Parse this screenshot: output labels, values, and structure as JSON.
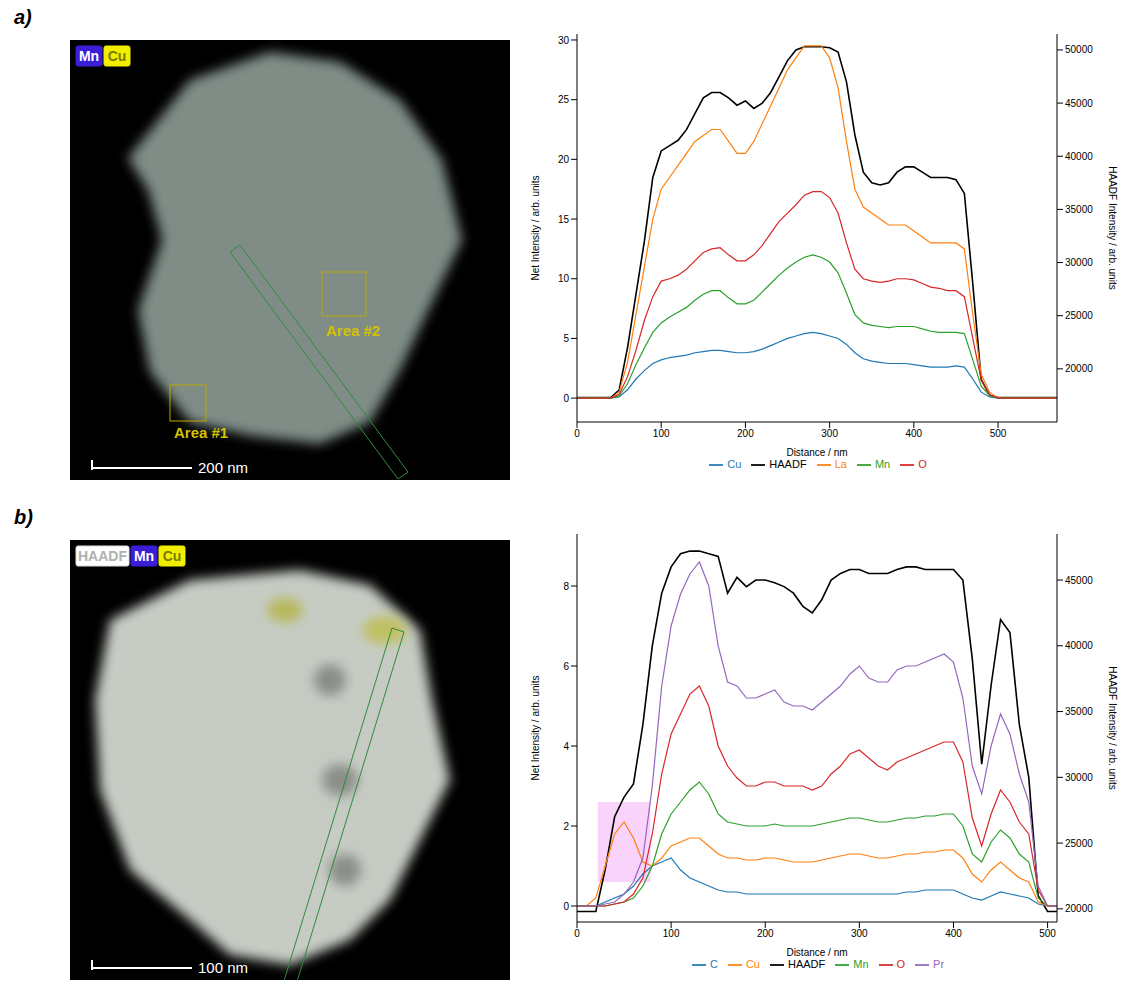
{
  "panels": [
    {
      "label": "a)",
      "image": {
        "badges": [
          "Mn",
          "Cu"
        ],
        "areas": [
          "Area #2",
          "Area #1"
        ],
        "scale_bar": "200 nm"
      }
    },
    {
      "label": "b)",
      "image": {
        "badges": [
          "HAADF",
          "Mn",
          "Cu"
        ],
        "areas": [],
        "scale_bar": "100 nm"
      }
    }
  ],
  "chart_data": [
    {
      "type": "line",
      "x_label": "Distance / nm",
      "y_label": "Net Intensity / arb. units",
      "y2_label": "HAADF Intensity / arb. units",
      "legend": "bottom",
      "xlim": [
        0,
        570
      ],
      "xticks": [
        0,
        100,
        200,
        300,
        400,
        500
      ],
      "ylim": [
        -2,
        30.5
      ],
      "yticks": [
        0,
        5,
        10,
        15,
        20,
        25,
        30
      ],
      "y2lim": [
        15000,
        51500
      ],
      "y2ticks": [
        20000,
        25000,
        30000,
        35000,
        40000,
        45000,
        50000
      ],
      "x": [
        0,
        10,
        20,
        30,
        40,
        50,
        60,
        70,
        80,
        90,
        100,
        110,
        120,
        130,
        140,
        150,
        160,
        170,
        180,
        190,
        200,
        210,
        220,
        230,
        240,
        250,
        260,
        270,
        280,
        290,
        300,
        310,
        320,
        330,
        340,
        350,
        360,
        370,
        380,
        390,
        400,
        410,
        420,
        430,
        440,
        450,
        460,
        470,
        480,
        490,
        500,
        510,
        520,
        530,
        540,
        550,
        560,
        570
      ],
      "series": [
        {
          "name": "HAADF",
          "color": "#000000",
          "axis": "y2",
          "values": [
            17300,
            17300,
            17300,
            17300,
            17300,
            18000,
            22000,
            27000,
            32000,
            38000,
            40500,
            41000,
            41500,
            42500,
            44000,
            45500,
            46000,
            46000,
            45500,
            44800,
            45200,
            44500,
            45000,
            46000,
            47500,
            49000,
            50000,
            50300,
            50300,
            50300,
            50200,
            49800,
            47000,
            42000,
            38500,
            37500,
            37300,
            37500,
            38500,
            39000,
            39000,
            38500,
            38000,
            38000,
            38000,
            37800,
            36500,
            28000,
            19000,
            17500,
            17300,
            17300,
            17300,
            17300,
            17300,
            17300,
            17300,
            17300
          ]
        },
        {
          "name": "Cu",
          "color": "#1f77b4",
          "values": [
            0,
            0,
            0,
            0,
            0,
            0.1,
            0.7,
            1.6,
            2.3,
            2.9,
            3.2,
            3.4,
            3.5,
            3.6,
            3.8,
            3.9,
            4,
            4,
            3.9,
            3.8,
            3.8,
            3.9,
            4.1,
            4.4,
            4.7,
            5,
            5.2,
            5.4,
            5.5,
            5.4,
            5.2,
            5,
            4.5,
            3.8,
            3.3,
            3.1,
            3,
            2.9,
            2.9,
            2.9,
            2.8,
            2.7,
            2.6,
            2.6,
            2.6,
            2.7,
            2.6,
            1.6,
            0.5,
            0.1,
            0,
            0,
            0,
            0,
            0,
            0,
            0,
            0
          ]
        },
        {
          "name": "La",
          "color": "#ff7f0e",
          "values": [
            0,
            0,
            0,
            0,
            0,
            0.5,
            3,
            7,
            11,
            15,
            17.5,
            18.5,
            19.5,
            20.5,
            21.5,
            22,
            22.5,
            22.5,
            21.5,
            20.5,
            20.5,
            21.5,
            23,
            24.5,
            26,
            27.5,
            28.5,
            29.5,
            29.5,
            29.5,
            28.5,
            26,
            21.5,
            17.5,
            16,
            15.5,
            15,
            14.5,
            14.5,
            14.5,
            14,
            13.5,
            13,
            13,
            13,
            13,
            12.5,
            7,
            2,
            0.5,
            0,
            0,
            0,
            0,
            0,
            0,
            0,
            0
          ]
        },
        {
          "name": "Mn",
          "color": "#2ca02c",
          "values": [
            0,
            0,
            0,
            0,
            0,
            0.2,
            1.2,
            2.8,
            4.2,
            5.5,
            6.3,
            6.8,
            7.2,
            7.6,
            8.2,
            8.7,
            9,
            9,
            8.4,
            7.9,
            7.9,
            8.2,
            8.9,
            9.6,
            10.3,
            10.9,
            11.4,
            11.8,
            12,
            11.8,
            11.4,
            10.5,
            8.8,
            7,
            6.3,
            6.1,
            6,
            5.9,
            6,
            6,
            6,
            5.8,
            5.6,
            5.5,
            5.5,
            5.5,
            5.4,
            3.2,
            1,
            0.2,
            0,
            0,
            0,
            0,
            0,
            0,
            0,
            0
          ]
        },
        {
          "name": "O",
          "color": "#d62728",
          "values": [
            0,
            0,
            0,
            0,
            0,
            0.3,
            1.8,
            4,
            6.5,
            8.5,
            9.8,
            10,
            10.3,
            10.8,
            11.5,
            12.2,
            12.5,
            12.6,
            12,
            11.5,
            11.5,
            12,
            12.8,
            13.8,
            14.8,
            15.5,
            16.2,
            17,
            17.3,
            17.3,
            16.8,
            15.5,
            13,
            10.8,
            10,
            9.8,
            9.7,
            9.8,
            10,
            10,
            9.9,
            9.6,
            9.3,
            9.2,
            9,
            9,
            8.5,
            5,
            1.5,
            0.3,
            0,
            0,
            0,
            0,
            0,
            0,
            0,
            0
          ]
        }
      ]
    },
    {
      "type": "line",
      "x_label": "Distance / nm",
      "y_label": "Net Intensity / arb. units",
      "y2_label": "HAADF Intensity / arb. units",
      "legend": "bottom",
      "xlim": [
        0,
        510
      ],
      "xticks": [
        0,
        100,
        200,
        300,
        400,
        500
      ],
      "ylim": [
        -0.4,
        9.3
      ],
      "yticks": [
        0,
        2,
        4,
        6,
        8
      ],
      "y2lim": [
        19000,
        48500
      ],
      "y2ticks": [
        20000,
        25000,
        30000,
        35000,
        40000,
        45000
      ],
      "highlight": {
        "x": [
          22,
          78
        ],
        "y": [
          0.6,
          2.6
        ],
        "color": "#ee82ee"
      },
      "x": [
        0,
        10,
        20,
        30,
        40,
        50,
        60,
        70,
        80,
        90,
        100,
        110,
        120,
        130,
        140,
        150,
        160,
        170,
        180,
        190,
        200,
        210,
        220,
        230,
        240,
        250,
        260,
        270,
        280,
        290,
        300,
        310,
        320,
        330,
        340,
        350,
        360,
        370,
        380,
        390,
        400,
        410,
        420,
        430,
        440,
        450,
        460,
        470,
        480,
        490,
        500,
        510
      ],
      "series": [
        {
          "name": "HAADF",
          "color": "#000000",
          "axis": "y2",
          "values": [
            19800,
            19800,
            19800,
            23000,
            27000,
            28500,
            29500,
            34000,
            40000,
            44000,
            46000,
            47000,
            47200,
            47200,
            47000,
            46800,
            44000,
            45200,
            44500,
            45000,
            45000,
            44800,
            44500,
            44000,
            43000,
            42500,
            43500,
            45000,
            45500,
            45800,
            45800,
            45500,
            45500,
            45500,
            45800,
            46000,
            46000,
            45800,
            45800,
            45800,
            45800,
            45000,
            39000,
            31000,
            37000,
            42000,
            41000,
            34000,
            30000,
            21000,
            19800,
            19800
          ]
        },
        {
          "name": "C",
          "color": "#1f77b4",
          "values": [
            0,
            0,
            0,
            0.1,
            0.2,
            0.3,
            0.5,
            0.8,
            1,
            1.1,
            1.2,
            0.9,
            0.7,
            0.6,
            0.5,
            0.4,
            0.35,
            0.35,
            0.3,
            0.3,
            0.3,
            0.3,
            0.3,
            0.3,
            0.3,
            0.3,
            0.3,
            0.3,
            0.3,
            0.3,
            0.3,
            0.3,
            0.3,
            0.3,
            0.3,
            0.35,
            0.35,
            0.4,
            0.4,
            0.4,
            0.4,
            0.3,
            0.2,
            0.15,
            0.25,
            0.35,
            0.3,
            0.25,
            0.2,
            0.05,
            0,
            0
          ]
        },
        {
          "name": "Cu",
          "color": "#ff7f0e",
          "values": [
            0,
            0,
            0.2,
            1,
            1.8,
            2.1,
            1.7,
            1.1,
            1,
            1.2,
            1.5,
            1.6,
            1.7,
            1.7,
            1.5,
            1.3,
            1.2,
            1.2,
            1.15,
            1.15,
            1.2,
            1.2,
            1.15,
            1.1,
            1.1,
            1.1,
            1.15,
            1.2,
            1.25,
            1.3,
            1.3,
            1.25,
            1.2,
            1.2,
            1.25,
            1.3,
            1.3,
            1.35,
            1.35,
            1.4,
            1.4,
            1.2,
            0.8,
            0.6,
            0.9,
            1.1,
            0.9,
            0.7,
            0.6,
            0.1,
            0,
            0
          ]
        },
        {
          "name": "Mn",
          "color": "#2ca02c",
          "values": [
            0,
            0,
            0,
            0,
            0.05,
            0.1,
            0.2,
            0.5,
            1,
            1.8,
            2.3,
            2.6,
            2.9,
            3.1,
            2.8,
            2.3,
            2.1,
            2.05,
            2,
            2,
            2,
            2.05,
            2,
            2,
            2,
            2,
            2.05,
            2.1,
            2.15,
            2.2,
            2.2,
            2.15,
            2.1,
            2.1,
            2.15,
            2.2,
            2.2,
            2.25,
            2.25,
            2.3,
            2.3,
            2,
            1.3,
            1.1,
            1.6,
            1.9,
            1.7,
            1.3,
            1.1,
            0.2,
            0,
            0
          ]
        },
        {
          "name": "O",
          "color": "#d62728",
          "values": [
            0,
            0,
            0,
            0,
            0.05,
            0.1,
            0.3,
            0.7,
            1.8,
            3.3,
            4.3,
            4.8,
            5.3,
            5.5,
            5,
            4,
            3.5,
            3.2,
            3,
            3,
            3.1,
            3.1,
            3,
            3,
            3,
            2.9,
            3,
            3.3,
            3.5,
            3.8,
            3.9,
            3.7,
            3.5,
            3.4,
            3.6,
            3.7,
            3.8,
            3.9,
            4,
            4.1,
            4.1,
            3.6,
            2.2,
            1.5,
            2.3,
            2.9,
            2.6,
            2.1,
            1.8,
            0.4,
            0,
            0
          ]
        },
        {
          "name": "Pr",
          "color": "#9467bd",
          "values": [
            0,
            0,
            0,
            0.05,
            0.1,
            0.3,
            0.6,
            1.2,
            3,
            5.5,
            7,
            7.8,
            8.3,
            8.6,
            8,
            6.5,
            5.6,
            5.5,
            5.2,
            5.2,
            5.3,
            5.4,
            5.1,
            5,
            5,
            4.9,
            5.1,
            5.3,
            5.5,
            5.8,
            6,
            5.7,
            5.6,
            5.6,
            5.9,
            6,
            6,
            6.1,
            6.2,
            6.3,
            6.1,
            5.2,
            3.5,
            2.8,
            4,
            4.8,
            4.3,
            3.3,
            2.6,
            0.5,
            0,
            0
          ]
        }
      ]
    }
  ]
}
